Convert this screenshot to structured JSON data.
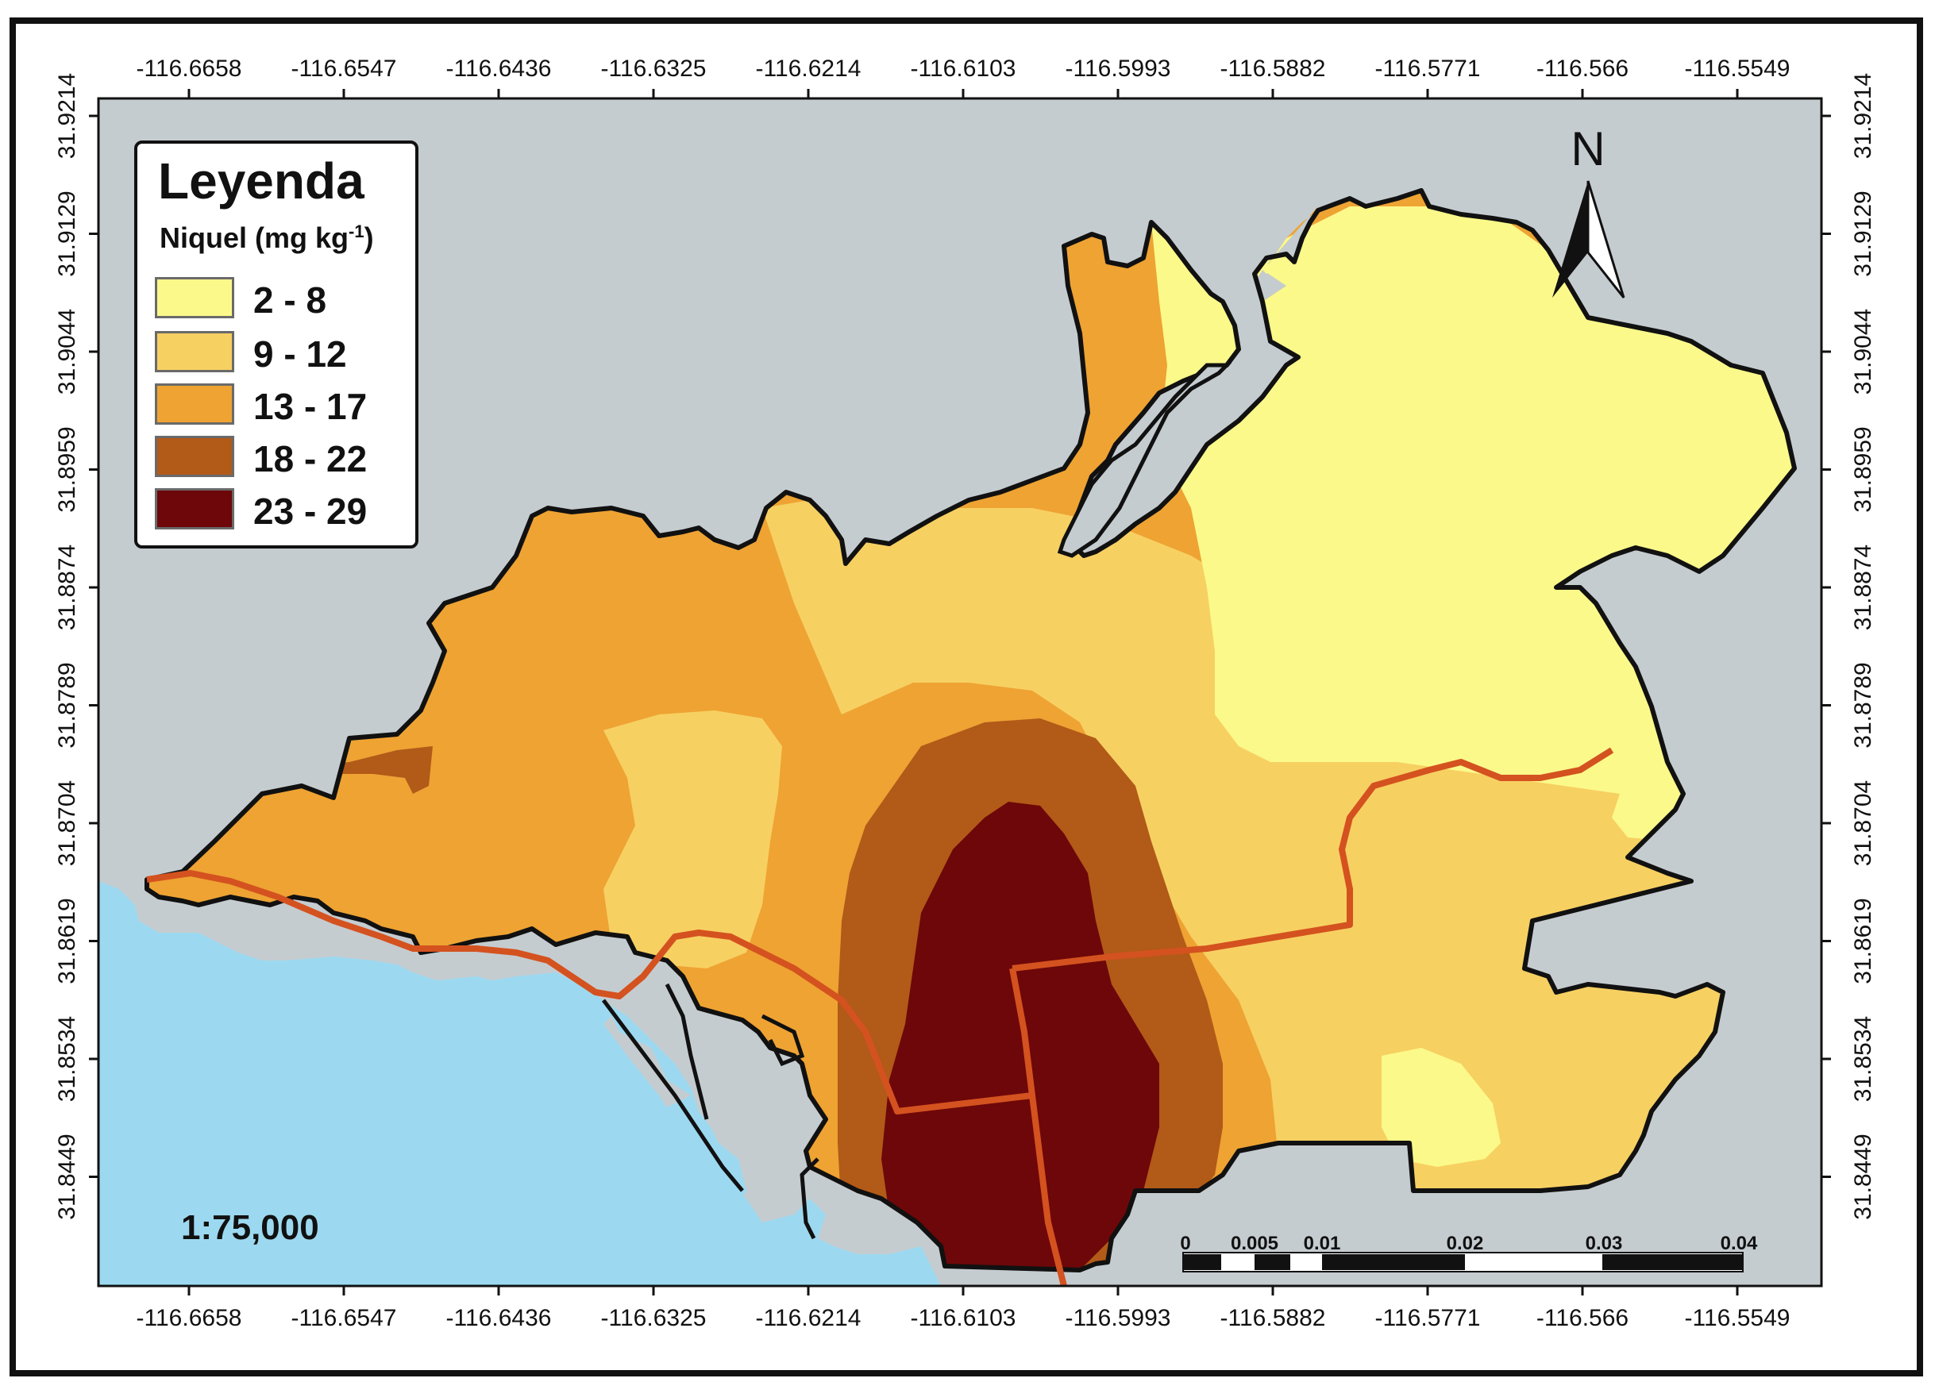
{
  "legend": {
    "title": "Leyenda",
    "subtitle_main": "Niquel (mg kg",
    "subtitle_sup": "-1",
    "subtitle_end": ")",
    "classes": [
      {
        "label": "2 - 8",
        "color": "#fbf98a"
      },
      {
        "label": "9 - 12",
        "color": "#f7d062"
      },
      {
        "label": "13 - 17",
        "color": "#eea333"
      },
      {
        "label": "18 - 22",
        "color": "#b25a18"
      },
      {
        "label": "23 - 29",
        "color": "#6e0709"
      }
    ]
  },
  "north_arrow": {
    "label": "N"
  },
  "scale": {
    "ratio": "1:75,000",
    "bar_labels": [
      "0",
      "0.005",
      "0.01",
      "0.02",
      "0.03",
      "0.04"
    ]
  },
  "axes": {
    "longitude_ticks": [
      "-116.6658",
      "-116.6547",
      "-116.6436",
      "-116.6325",
      "-116.6214",
      "-116.6103",
      "-116.5993",
      "-116.5882",
      "-116.5771",
      "-116.566",
      "-116.5549"
    ],
    "latitude_ticks": [
      "31.9214",
      "31.9129",
      "31.9044",
      "31.8959",
      "31.8874",
      "31.8789",
      "31.8704",
      "31.8619",
      "31.8534",
      "31.8449"
    ]
  },
  "colors": {
    "land_background": "#c5ccd0",
    "water": "#9cd9f0",
    "boundary": "#111111",
    "roads": "#d4521f"
  }
}
